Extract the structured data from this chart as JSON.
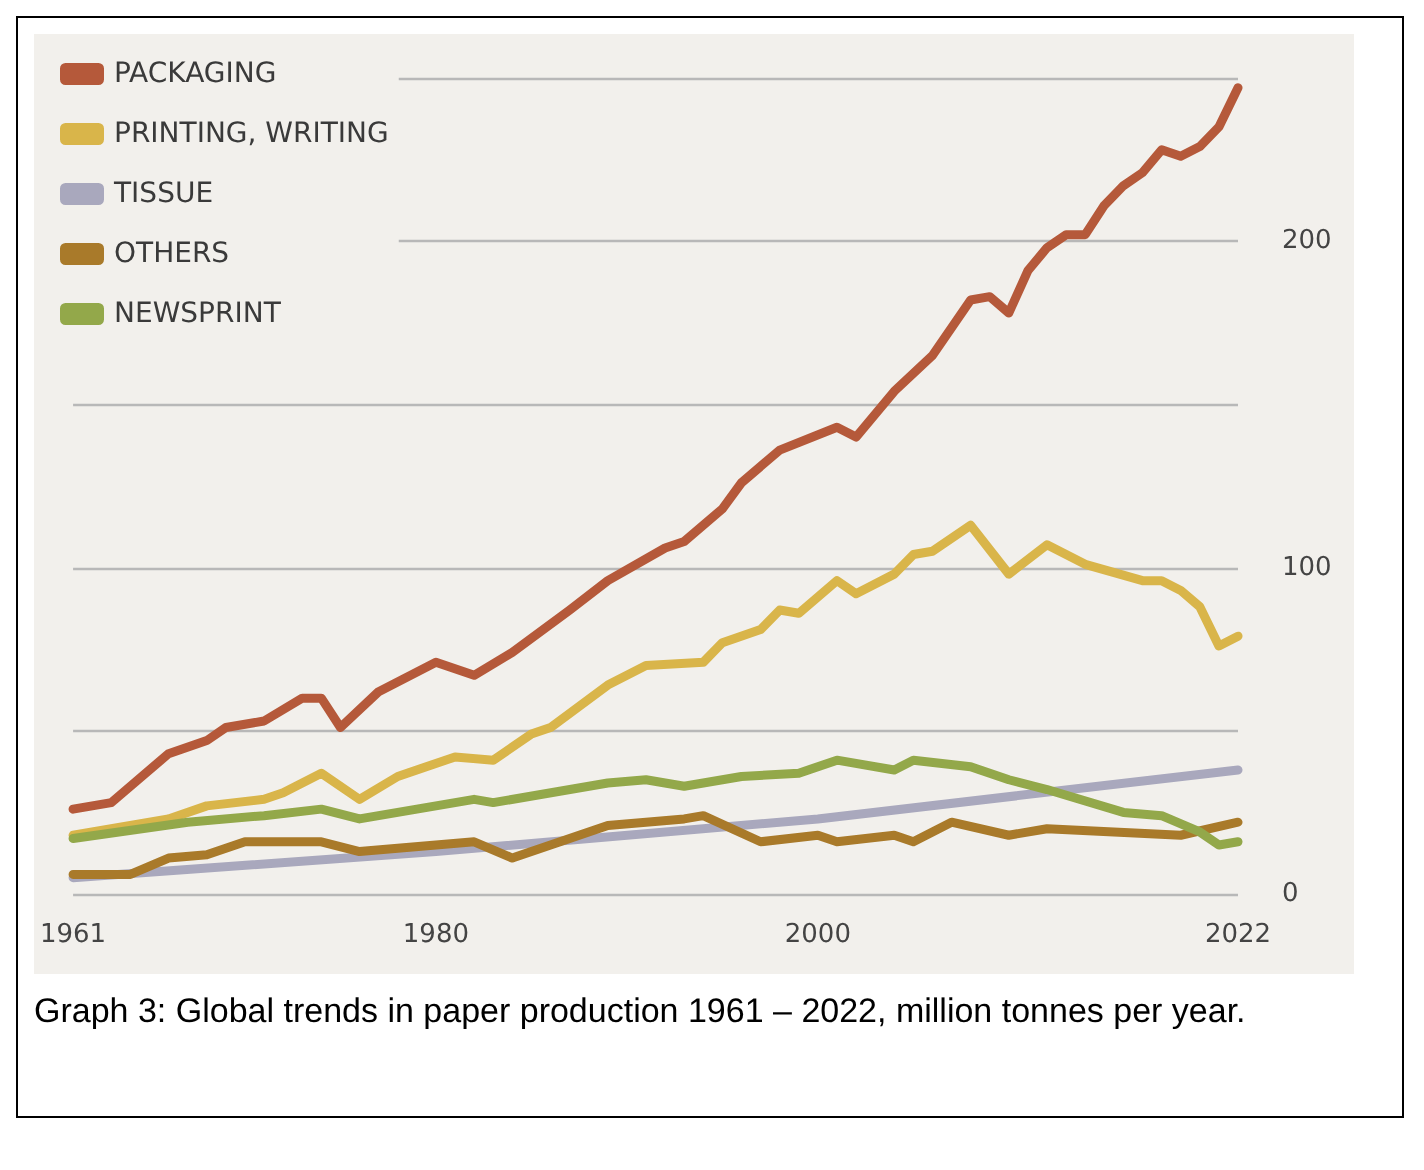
{
  "chart_data": {
    "type": "line",
    "annotations": [
      "Graph 3: Global trends in paper production 1961 – 2022, million tonnes per year."
    ],
    "series": [
      {
        "name": "PACKAGING",
        "color": "#b5593a",
        "x": [
          1961,
          1963,
          1966,
          1968,
          1969,
          1971,
          1973,
          1974,
          1975,
          1977,
          1980,
          1982,
          1984,
          1987,
          1989,
          1992,
          1993,
          1995,
          1996,
          1998,
          2001,
          2002,
          2004,
          2006,
          2008,
          2009,
          2010,
          2011,
          2012,
          2013,
          2014,
          2015,
          2016,
          2017,
          2018,
          2019,
          2020,
          2021,
          2022
        ],
        "values": [
          26,
          28,
          43,
          47,
          51,
          53,
          60,
          60,
          51,
          62,
          71,
          67,
          74,
          87,
          96,
          106,
          108,
          118,
          126,
          136,
          143,
          140,
          154,
          165,
          182,
          183,
          178,
          191,
          198,
          202,
          202,
          211,
          217,
          221,
          228,
          226,
          229,
          235,
          247
        ]
      },
      {
        "name": "PRINTING, WRITING",
        "color": "#d9b54a",
        "x": [
          1961,
          1966,
          1968,
          1971,
          1972,
          1974,
          1976,
          1978,
          1981,
          1983,
          1985,
          1986,
          1989,
          1991,
          1994,
          1995,
          1997,
          1998,
          1999,
          2001,
          2002,
          2004,
          2005,
          2006,
          2008,
          2010,
          2012,
          2014,
          2017,
          2018,
          2019,
          2020,
          2021,
          2022
        ],
        "values": [
          18,
          23,
          27,
          29,
          31,
          37,
          29,
          36,
          42,
          41,
          49,
          51,
          64,
          70,
          71,
          77,
          81,
          87,
          86,
          96,
          92,
          98,
          104,
          105,
          113,
          98,
          107,
          101,
          96,
          96,
          93,
          88,
          76,
          79
        ]
      },
      {
        "name": "TISSUE",
        "color": "#a9a8bd",
        "x": [
          1961,
          1980,
          2000,
          2022
        ],
        "values": [
          5,
          13,
          23,
          38
        ]
      },
      {
        "name": "OTHERS",
        "color": "#a97a2a",
        "x": [
          1961,
          1964,
          1966,
          1968,
          1970,
          1974,
          1976,
          1982,
          1984,
          1989,
          1993,
          1994,
          1997,
          2000,
          2001,
          2004,
          2005,
          2007,
          2010,
          2012,
          2019,
          2022
        ],
        "values": [
          6,
          6,
          11,
          12,
          16,
          16,
          13,
          16,
          11,
          21,
          23,
          24,
          16,
          18,
          16,
          18,
          16,
          22,
          18,
          20,
          18,
          22
        ]
      },
      {
        "name": "NEWSPRINT",
        "color": "#93a84a",
        "x": [
          1961,
          1967,
          1971,
          1974,
          1976,
          1982,
          1983,
          1989,
          1991,
          1993,
          1996,
          1999,
          2001,
          2004,
          2005,
          2008,
          2010,
          2012,
          2016,
          2018,
          2020,
          2021,
          2022
        ],
        "values": [
          17,
          22,
          24,
          26,
          23,
          29,
          28,
          34,
          35,
          33,
          36,
          37,
          41,
          38,
          41,
          39,
          35,
          32,
          25,
          24,
          19,
          15,
          16
        ]
      }
    ],
    "xlim": [
      1961,
      2022
    ],
    "xticks": [
      1961,
      1980,
      2000,
      2022
    ],
    "ylim": [
      0,
      250
    ],
    "yticks": [
      0,
      {
        "value": 50,
        "label": null
      },
      100,
      {
        "value": 150,
        "label": null
      },
      200,
      {
        "value": 250,
        "label": null
      }
    ],
    "grid": "y",
    "legend": "top left",
    "marker": "none",
    "line_style": "solid"
  }
}
